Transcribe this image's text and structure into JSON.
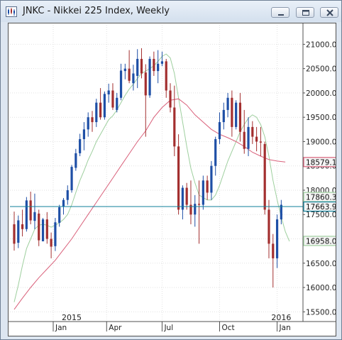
{
  "window": {
    "title": "JNKC - Nikkei 225 Index, Weekly",
    "buttons": [
      "minimize",
      "maximize",
      "close"
    ]
  },
  "colors": {
    "up": "#1e4fa6",
    "down": "#a32f2f",
    "ma_fast": "#9ecf9e",
    "ma_slow": "#d9607a",
    "last_price_line": "#0f7f9a"
  },
  "chart_data": {
    "type": "candlestick",
    "title": "JNKC - Nikkei 225 Index, Weekly",
    "ylim": [
      15300,
      21400
    ],
    "y_ticks": [
      "15500.0",
      "16000.0",
      "16500.0",
      "17000.0",
      "17500.0",
      "18000.0",
      "18500.0",
      "19000.0",
      "19500.0",
      "20000.0",
      "20500.0",
      "21000.0"
    ],
    "x_labels": [
      "Jan",
      "Apr",
      "Jul",
      "Oct",
      "Jan"
    ],
    "year_labels": [
      "2015",
      "2016"
    ],
    "grid": true,
    "price_labels": [
      {
        "text": "18579.1",
        "value": 18579.1,
        "color": "#d9607a"
      },
      {
        "text": "17860.3",
        "value": 17860.3,
        "color": "#9ecf9e"
      },
      {
        "text": "17663.9",
        "value": 17663.9,
        "color": "#0f7f9a"
      },
      {
        "text": "16958.0",
        "value": 16958.0,
        "color": "#9ecf9e"
      }
    ],
    "last_price": 17663.9,
    "candles": [
      [
        17300,
        17560,
        16760,
        16900
      ],
      [
        16920,
        17480,
        16810,
        17380
      ],
      [
        17300,
        17600,
        17050,
        17200
      ],
      [
        17200,
        17860,
        17150,
        17790
      ],
      [
        17790,
        17970,
        17300,
        17380
      ],
      [
        17370,
        17930,
        17200,
        17550
      ],
      [
        17520,
        17600,
        16850,
        16970
      ],
      [
        16950,
        17430,
        16950,
        17400
      ],
      [
        17400,
        17550,
        16900,
        17000
      ],
      [
        17000,
        17130,
        16600,
        16840
      ],
      [
        16850,
        17430,
        16750,
        17340
      ],
      [
        17330,
        17700,
        17250,
        17650
      ],
      [
        17660,
        17840,
        17500,
        17800
      ],
      [
        17800,
        18100,
        17700,
        18000
      ],
      [
        18000,
        18520,
        17950,
        18480
      ],
      [
        18460,
        18850,
        18400,
        18760
      ],
      [
        18760,
        19160,
        18700,
        19050
      ],
      [
        19050,
        19400,
        18820,
        19250
      ],
      [
        19250,
        19600,
        19100,
        19500
      ],
      [
        19500,
        19630,
        19200,
        19400
      ],
      [
        19400,
        19880,
        19300,
        19800
      ],
      [
        19800,
        20100,
        19450,
        19500
      ],
      [
        19500,
        20030,
        19450,
        19980
      ],
      [
        19970,
        20190,
        19800,
        20050
      ],
      [
        20050,
        20200,
        19650,
        19700
      ],
      [
        19650,
        20000,
        19600,
        19900
      ],
      [
        19900,
        20600,
        19850,
        20460
      ],
      [
        20450,
        20600,
        20280,
        20500
      ],
      [
        20500,
        20880,
        20200,
        20250
      ],
      [
        20200,
        20580,
        20050,
        20400
      ],
      [
        20350,
        20900,
        20100,
        20700
      ],
      [
        20700,
        20920,
        20300,
        20400
      ],
      [
        20420,
        20590,
        19100,
        19950
      ],
      [
        19950,
        20750,
        19900,
        20700
      ],
      [
        20700,
        20850,
        20350,
        20450
      ],
      [
        20450,
        20880,
        20200,
        20600
      ],
      [
        20600,
        20850,
        20550,
        20650
      ],
      [
        20650,
        20700,
        19900,
        20050
      ],
      [
        20050,
        20200,
        19600,
        19700
      ],
      [
        19700,
        20150,
        18700,
        18900
      ],
      [
        18900,
        19150,
        17500,
        17600
      ],
      [
        17600,
        18100,
        17400,
        18050
      ],
      [
        18050,
        18150,
        17600,
        17700
      ],
      [
        17700,
        18200,
        17300,
        17500
      ],
      [
        17500,
        17900,
        17250,
        17720
      ],
      [
        17720,
        18200,
        16900,
        17700
      ],
      [
        17700,
        18300,
        17600,
        18200
      ],
      [
        18200,
        18300,
        17800,
        17950
      ],
      [
        17950,
        18600,
        17800,
        18500
      ],
      [
        18500,
        19100,
        18300,
        19050
      ],
      [
        19050,
        19600,
        18950,
        19400
      ],
      [
        19400,
        19800,
        19250,
        19650
      ],
      [
        19650,
        20000,
        19500,
        19900
      ],
      [
        19900,
        20050,
        19100,
        19300
      ],
      [
        19300,
        19850,
        19250,
        19800
      ],
      [
        19800,
        20000,
        19000,
        19200
      ],
      [
        19200,
        19650,
        18750,
        18850
      ],
      [
        18850,
        19500,
        18700,
        19300
      ],
      [
        19300,
        19420,
        18950,
        19100
      ],
      [
        19100,
        19300,
        18800,
        19000
      ],
      [
        19000,
        19300,
        18700,
        18980
      ],
      [
        18950,
        19000,
        17500,
        17600
      ],
      [
        17600,
        17800,
        16600,
        16900
      ],
      [
        16900,
        17100,
        16000,
        16600
      ],
      [
        16600,
        17500,
        16400,
        17400
      ],
      [
        17400,
        17800,
        17300,
        17700
      ]
    ],
    "series": [
      {
        "name": "",
        "color": "#9ecf9e",
        "values": [
          [
            0,
            15700
          ],
          [
            1,
            16050
          ],
          [
            2,
            16450
          ],
          [
            3,
            16800
          ],
          [
            4,
            17000
          ],
          [
            5,
            17200
          ],
          [
            6,
            17280
          ],
          [
            7,
            17300
          ],
          [
            8,
            17280
          ],
          [
            9,
            17240
          ],
          [
            10,
            17280
          ],
          [
            11,
            17330
          ],
          [
            12,
            17400
          ],
          [
            13,
            17500
          ],
          [
            14,
            17700
          ],
          [
            15,
            17950
          ],
          [
            16,
            18200
          ],
          [
            17,
            18400
          ],
          [
            18,
            18620
          ],
          [
            19,
            18800
          ],
          [
            20,
            19000
          ],
          [
            21,
            19150
          ],
          [
            22,
            19300
          ],
          [
            23,
            19450
          ],
          [
            24,
            19530
          ],
          [
            25,
            19650
          ],
          [
            26,
            19800
          ],
          [
            27,
            19950
          ],
          [
            28,
            20080
          ],
          [
            29,
            20180
          ],
          [
            30,
            20300
          ],
          [
            31,
            20400
          ],
          [
            32,
            20450
          ],
          [
            33,
            20500
          ],
          [
            34,
            20560
          ],
          [
            35,
            20650
          ],
          [
            36,
            20750
          ],
          [
            37,
            20800
          ],
          [
            38,
            20720
          ],
          [
            39,
            20400
          ],
          [
            40,
            19900
          ],
          [
            41,
            19400
          ],
          [
            42,
            18900
          ],
          [
            43,
            18450
          ],
          [
            44,
            18150
          ],
          [
            45,
            17900
          ],
          [
            46,
            17850
          ],
          [
            47,
            17800
          ],
          [
            48,
            17800
          ],
          [
            49,
            17900
          ],
          [
            50,
            18100
          ],
          [
            51,
            18350
          ],
          [
            52,
            18600
          ],
          [
            53,
            18800
          ],
          [
            54,
            19000
          ],
          [
            55,
            19200
          ],
          [
            56,
            19350
          ],
          [
            57,
            19480
          ],
          [
            58,
            19550
          ],
          [
            59,
            19500
          ],
          [
            60,
            19350
          ],
          [
            61,
            19100
          ],
          [
            62,
            18700
          ],
          [
            63,
            18200
          ],
          [
            64,
            17800
          ],
          [
            65,
            17450
          ],
          [
            66,
            17150
          ],
          [
            67,
            16950
          ]
        ]
      },
      {
        "name": "",
        "color": "#d9607a",
        "values": [
          [
            0,
            15550
          ],
          [
            2,
            15780
          ],
          [
            4,
            16000
          ],
          [
            6,
            16200
          ],
          [
            8,
            16380
          ],
          [
            10,
            16560
          ],
          [
            12,
            16780
          ],
          [
            14,
            17000
          ],
          [
            16,
            17250
          ],
          [
            18,
            17500
          ],
          [
            20,
            17750
          ],
          [
            22,
            18000
          ],
          [
            24,
            18250
          ],
          [
            26,
            18500
          ],
          [
            28,
            18750
          ],
          [
            30,
            19000
          ],
          [
            32,
            19220
          ],
          [
            34,
            19500
          ],
          [
            36,
            19700
          ],
          [
            38,
            19850
          ],
          [
            40,
            19880
          ],
          [
            42,
            19750
          ],
          [
            44,
            19550
          ],
          [
            46,
            19400
          ],
          [
            48,
            19250
          ],
          [
            50,
            19150
          ],
          [
            52,
            19080
          ],
          [
            54,
            19000
          ],
          [
            56,
            18900
          ],
          [
            58,
            18780
          ],
          [
            60,
            18700
          ],
          [
            62,
            18630
          ],
          [
            64,
            18600
          ],
          [
            66,
            18579
          ]
        ]
      }
    ]
  }
}
